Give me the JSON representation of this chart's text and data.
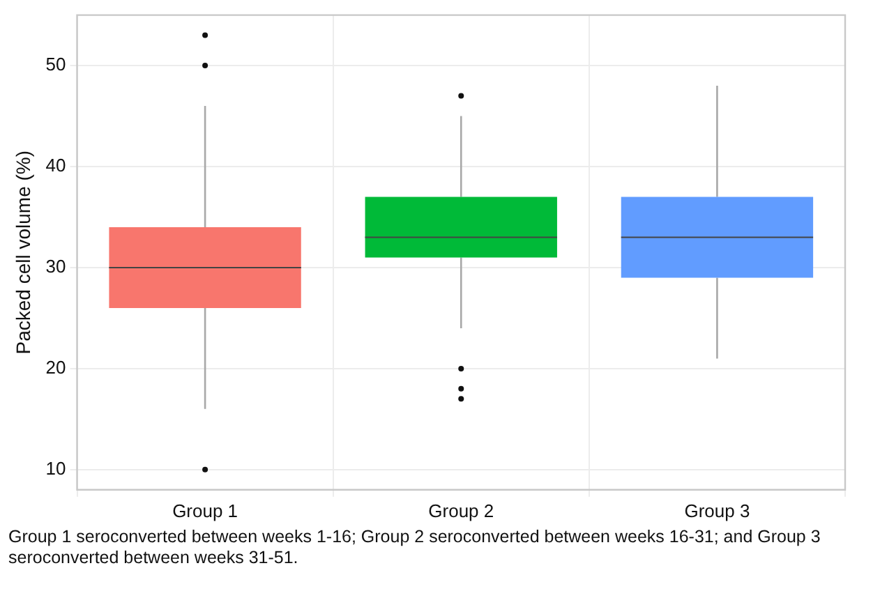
{
  "chart_data": {
    "type": "box",
    "ylabel": "Packed cell volume (%)",
    "categories": [
      "Group 1",
      "Group 2",
      "Group 3"
    ],
    "colors": [
      "#f8766d",
      "#00ba38",
      "#619cff"
    ],
    "boxes": [
      {
        "low": 16,
        "q1": 26,
        "median": 30,
        "q3": 34,
        "high": 46,
        "outliers": [
          53,
          50,
          10
        ]
      },
      {
        "low": 24,
        "q1": 31,
        "median": 33,
        "q3": 37,
        "high": 45,
        "outliers": [
          47,
          20,
          18,
          17
        ]
      },
      {
        "low": 21,
        "q1": 29,
        "median": 33,
        "q3": 37,
        "high": 48
      }
    ],
    "ylim": [
      8,
      55
    ],
    "yticks": [
      10,
      20,
      30,
      40,
      50
    ],
    "grid": true,
    "legend": false,
    "annotations": [
      "Group 1 seroconverted between weeks 1-16; Group 2 seroconverted between weeks 16-31; and Group 3 seroconverted between weeks 31-51."
    ]
  }
}
